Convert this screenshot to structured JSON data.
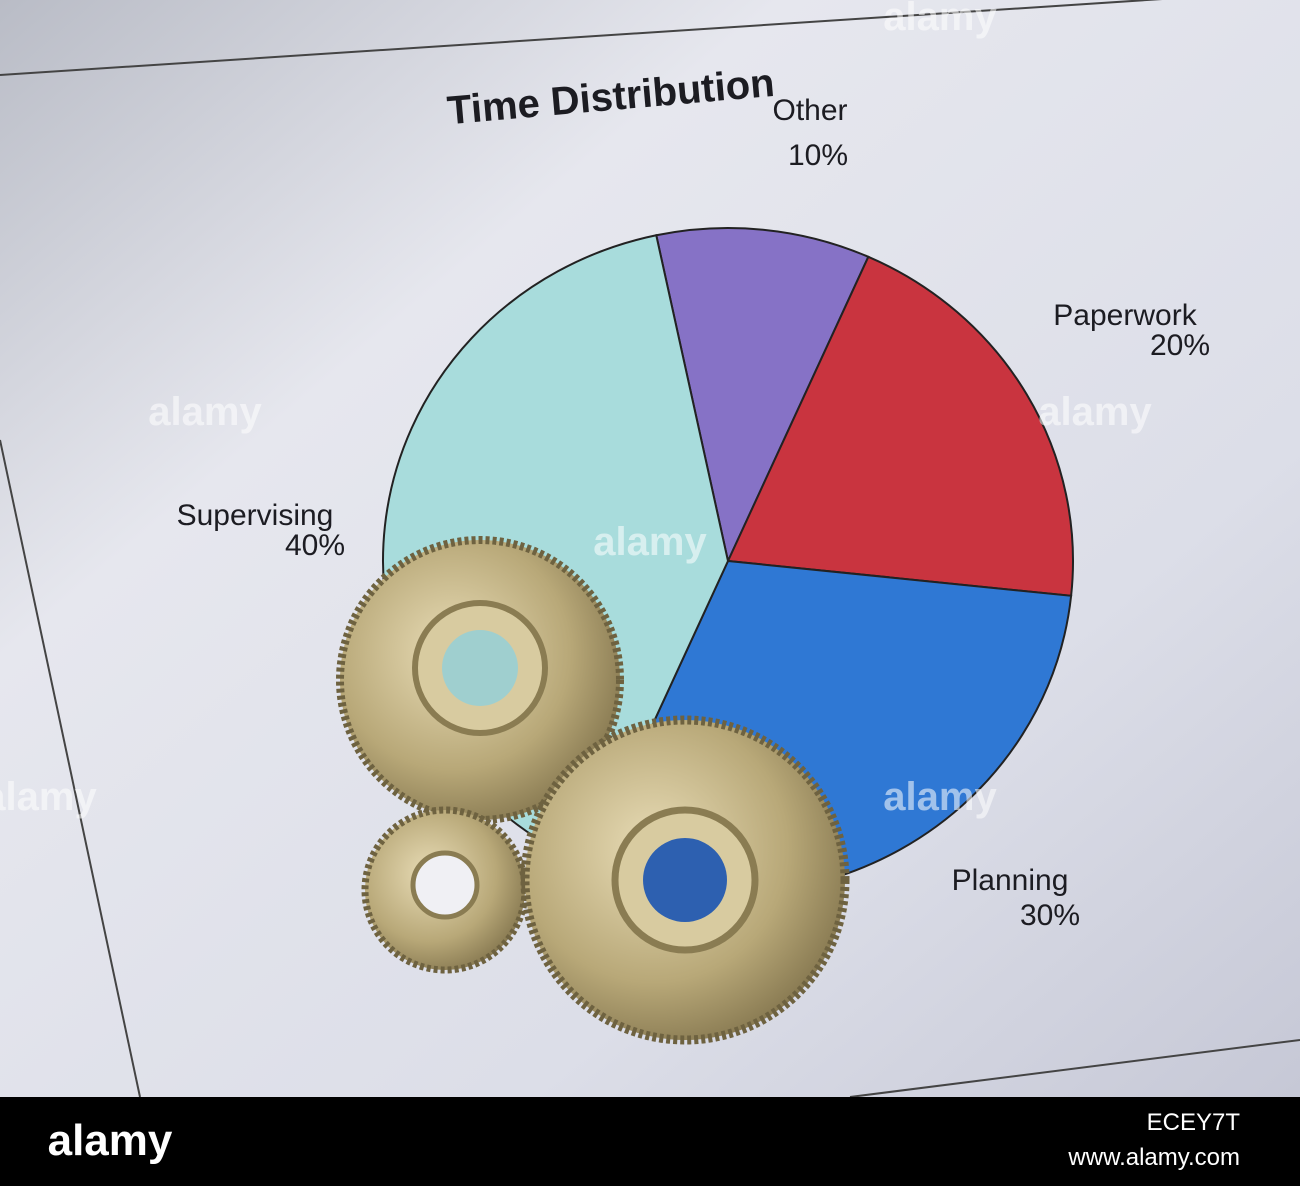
{
  "chart_data": {
    "type": "pie",
    "title": "Time Distribution",
    "categories": [
      "Other",
      "Paperwork",
      "Planning",
      "Supervising"
    ],
    "values": [
      10,
      20,
      30,
      40
    ],
    "value_labels": [
      "10%",
      "20%",
      "30%",
      "40%"
    ],
    "colors": [
      "#8672c6",
      "#c9343f",
      "#2f78d4",
      "#a8dcdc"
    ]
  },
  "watermark": "alamy",
  "image_id": "ECEY7T",
  "site": "www.alamy.com"
}
